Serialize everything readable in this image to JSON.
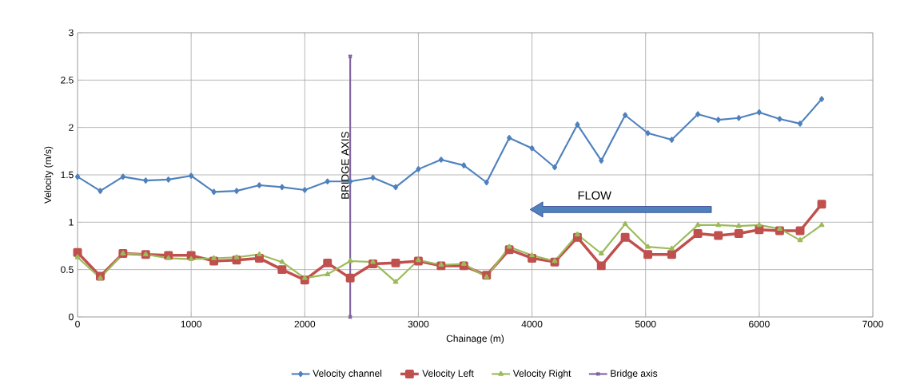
{
  "chart_data": {
    "type": "line",
    "xlabel": "Chainage  (m)",
    "ylabel": "Velocity (m/s)",
    "x": [
      0,
      200,
      400,
      600,
      800,
      1000,
      1200,
      1400,
      1600,
      1800,
      2000,
      2200,
      2400,
      2600,
      2800,
      3000,
      3200,
      3400,
      3600,
      3800,
      4000,
      4200,
      4400,
      4610,
      4820,
      5020,
      5230,
      5460,
      5640,
      5820,
      6000,
      6180,
      6360,
      6550
    ],
    "series": [
      {
        "name": "Velocity channel",
        "color": "#4f81bd",
        "marker": "diamond",
        "values": [
          1.48,
          1.33,
          1.48,
          1.44,
          1.45,
          1.49,
          1.32,
          1.33,
          1.39,
          1.37,
          1.34,
          1.43,
          1.43,
          1.47,
          1.37,
          1.56,
          1.66,
          1.6,
          1.42,
          1.89,
          1.78,
          1.58,
          2.03,
          1.65,
          2.13,
          1.94,
          1.87,
          2.14,
          2.08,
          2.1,
          2.16,
          2.09,
          2.04,
          2.3
        ]
      },
      {
        "name": "Velocity Left",
        "color": "#c0504d",
        "marker": "square",
        "values": [
          0.68,
          0.43,
          0.67,
          0.66,
          0.65,
          0.65,
          0.59,
          0.6,
          0.62,
          0.5,
          0.39,
          0.57,
          0.41,
          0.56,
          0.57,
          0.59,
          0.54,
          0.54,
          0.44,
          0.71,
          0.62,
          0.58,
          0.84,
          0.54,
          0.84,
          0.66,
          0.66,
          0.88,
          0.86,
          0.88,
          0.92,
          0.91,
          0.91,
          1.19
        ]
      },
      {
        "name": "Velocity Right",
        "color": "#9bbb59",
        "marker": "triangle",
        "values": [
          0.63,
          0.41,
          0.67,
          0.66,
          0.62,
          0.61,
          0.62,
          0.63,
          0.66,
          0.58,
          0.41,
          0.45,
          0.59,
          0.58,
          0.37,
          0.6,
          0.55,
          0.56,
          0.42,
          0.74,
          0.65,
          0.59,
          0.87,
          0.67,
          0.98,
          0.74,
          0.72,
          0.97,
          0.97,
          0.96,
          0.97,
          0.93,
          0.81,
          0.97
        ]
      },
      {
        "name": "Bridge axis",
        "color": "#8064a2",
        "marker": "cross",
        "x": [
          2400,
          2400
        ],
        "values": [
          0,
          2.75
        ]
      }
    ],
    "annotations": [
      {
        "text": "BRIDGE AXIS",
        "x": 2400,
        "y": 1.6
      },
      "FLOW"
    ],
    "xlim": [
      0,
      7000
    ],
    "xticks": [
      0,
      1000,
      2000,
      3000,
      4000,
      5000,
      6000,
      7000
    ],
    "ylim": [
      0,
      3
    ],
    "yticks": [
      0,
      0.5,
      1,
      1.5,
      2,
      2.5,
      3
    ],
    "grid": true,
    "legend": "bottom",
    "line_style": "solid"
  }
}
